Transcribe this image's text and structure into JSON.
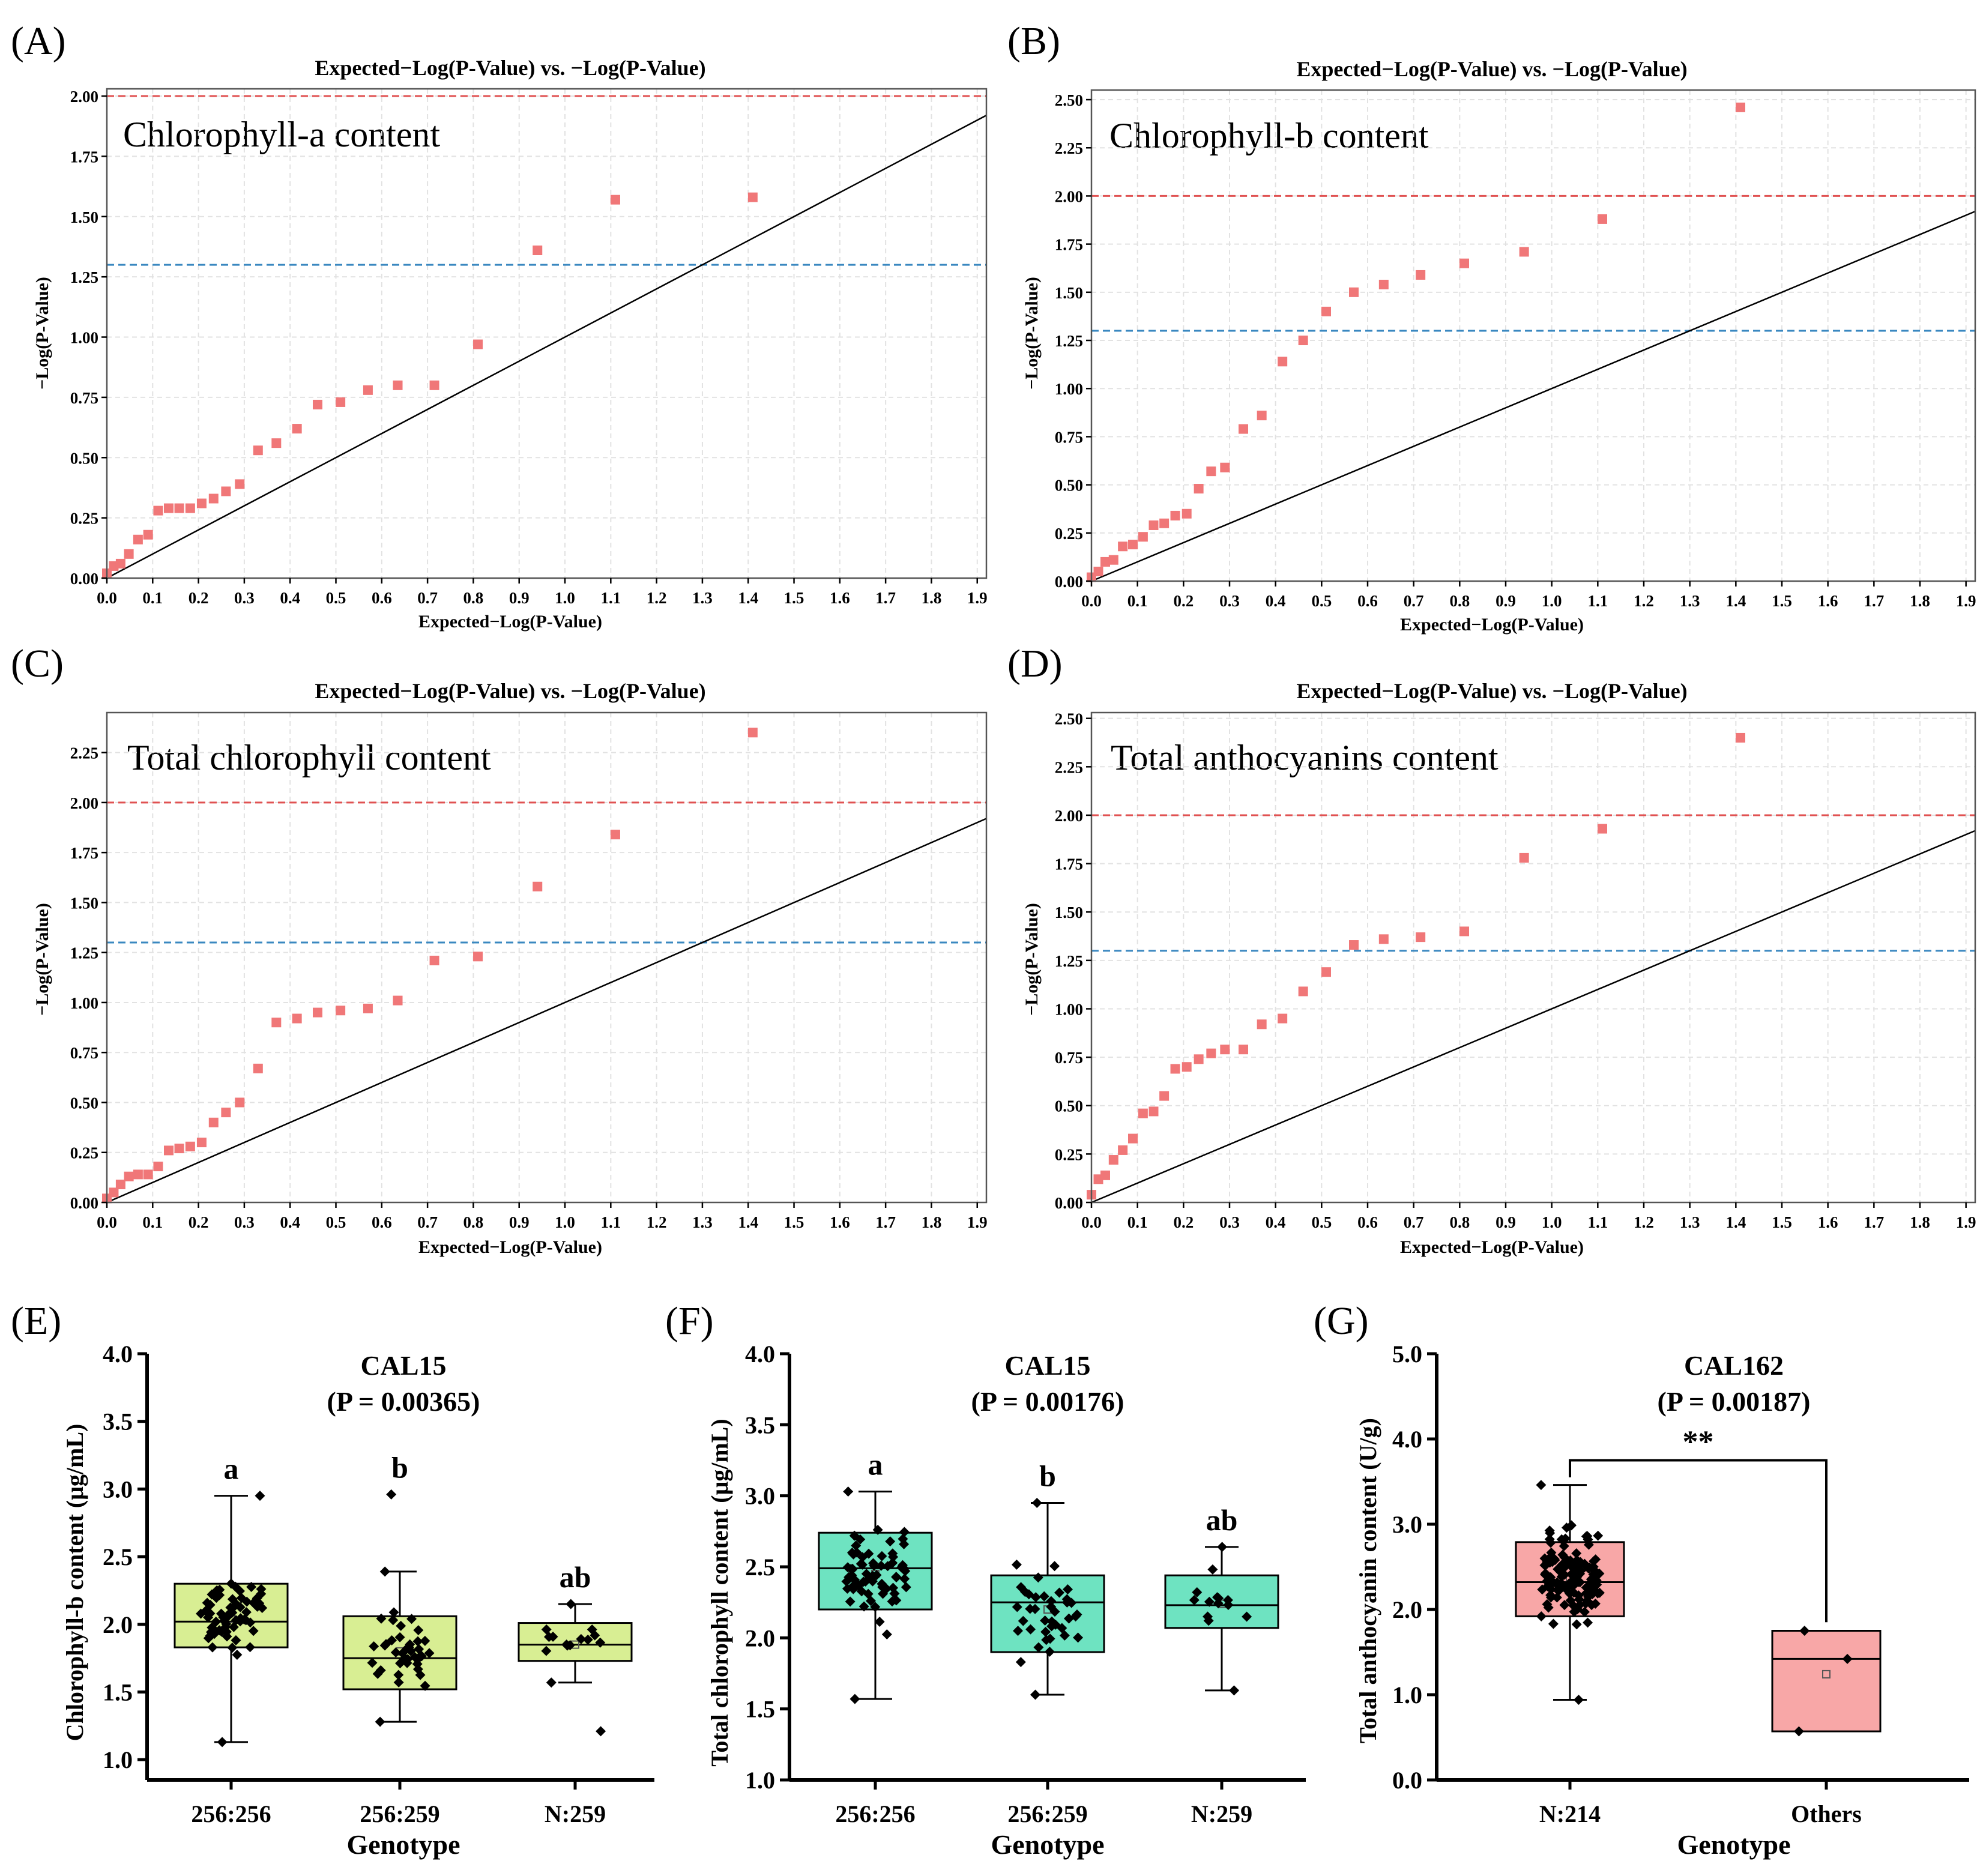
{
  "figure": {
    "qq_panels": [
      {
        "panel_label": "(A)",
        "title": "Expected−Log(P-Value) vs. −Log(P-Value)",
        "trait_label": "Chlorophyll-a content",
        "xlabel": "Expected−Log(P-Value)",
        "ylabel": "−Log(P-Value)"
      },
      {
        "panel_label": "(B)",
        "title": "Expected−Log(P-Value) vs. −Log(P-Value)",
        "trait_label": "Chlorophyll-b content",
        "xlabel": "Expected−Log(P-Value)",
        "ylabel": "−Log(P-Value)"
      },
      {
        "panel_label": "(C)",
        "title": "Expected−Log(P-Value) vs. −Log(P-Value)",
        "trait_label": "Total chlorophyll content",
        "xlabel": "Expected−Log(P-Value)",
        "ylabel": "−Log(P-Value)"
      },
      {
        "panel_label": "(D)",
        "title": "Expected−Log(P-Value) vs. −Log(P-Value)",
        "trait_label": "Total anthocyanins content",
        "xlabel": "Expected−Log(P-Value)",
        "ylabel": "−Log(P-Value)"
      }
    ],
    "box_panels": [
      {
        "panel_label": "(E)",
        "marker": "CAL15",
        "p_label": "(P = 0.00365)",
        "ylabel": "Chlorophyll-b content (μg/mL)",
        "xlabel": "Genotype"
      },
      {
        "panel_label": "(F)",
        "marker": "CAL15",
        "p_label": "(P = 0.00176)",
        "ylabel": "Total chlorophyll content (μg/mL)",
        "xlabel": "Genotype"
      },
      {
        "panel_label": "(G)",
        "marker": "CAL162",
        "p_label": "(P = 0.00187)",
        "ylabel": "Total anthocyanin content (U/g)",
        "xlabel": "Genotype",
        "significance": "**"
      }
    ]
  },
  "colors": {
    "qq_point": "#f07778",
    "threshold_red": "#e05252",
    "threshold_blue": "#3a88c0",
    "grid": "#e2e2e2",
    "diag": "#000000",
    "box_E": "#d8ee93",
    "box_F": "#6ee3c1",
    "box_G": "#f8a7a7"
  },
  "chart_data": [
    {
      "type": "scatter",
      "name": "A",
      "title": "Expected−Log(P-Value) vs. −Log(P-Value)",
      "xlabel": "Expected−Log(P-Value)",
      "ylabel": "−Log(P-Value)",
      "xlim": [
        0,
        1.92
      ],
      "ylim": [
        0,
        2.03
      ],
      "xticks": [
        "0.0",
        "0.1",
        "0.2",
        "0.3",
        "0.4",
        "0.5",
        "0.6",
        "0.7",
        "0.8",
        "0.9",
        "1.0",
        "1.1",
        "1.2",
        "1.3",
        "1.4",
        "1.5",
        "1.6",
        "1.7",
        "1.8",
        "1.9"
      ],
      "yticks": [
        "0.00",
        "0.25",
        "0.50",
        "0.75",
        "1.00",
        "1.25",
        "1.50",
        "1.75",
        "2.00"
      ],
      "thresholds": {
        "red": 2.0,
        "blue": 1.3
      },
      "x": [
        0.0,
        0.015,
        0.03,
        0.048,
        0.068,
        0.09,
        0.112,
        0.135,
        0.158,
        0.182,
        0.207,
        0.233,
        0.26,
        0.29,
        0.33,
        0.37,
        0.415,
        0.46,
        0.51,
        0.57,
        0.635,
        0.715,
        0.81,
        0.94,
        1.11,
        1.41
      ],
      "y": [
        0.02,
        0.05,
        0.06,
        0.1,
        0.16,
        0.18,
        0.28,
        0.29,
        0.29,
        0.29,
        0.31,
        0.33,
        0.36,
        0.39,
        0.53,
        0.56,
        0.62,
        0.72,
        0.73,
        0.78,
        0.8,
        0.8,
        0.97,
        1.36,
        1.57,
        1.58
      ]
    },
    {
      "type": "scatter",
      "name": "B",
      "title": "Expected−Log(P-Value) vs. −Log(P-Value)",
      "xlabel": "Expected−Log(P-Value)",
      "ylabel": "−Log(P-Value)",
      "xlim": [
        0,
        1.92
      ],
      "ylim": [
        0,
        2.55
      ],
      "xticks": [
        "0.0",
        "0.1",
        "0.2",
        "0.3",
        "0.4",
        "0.5",
        "0.6",
        "0.7",
        "0.8",
        "0.9",
        "1.0",
        "1.1",
        "1.2",
        "1.3",
        "1.4",
        "1.5",
        "1.6",
        "1.7",
        "1.8",
        "1.9"
      ],
      "yticks": [
        "0.00",
        "0.25",
        "0.50",
        "0.75",
        "1.00",
        "1.25",
        "1.50",
        "1.75",
        "2.00",
        "2.25",
        "2.50"
      ],
      "thresholds": {
        "red": 2.0,
        "blue": 1.3
      },
      "x": [
        0.0,
        0.015,
        0.03,
        0.048,
        0.068,
        0.09,
        0.112,
        0.135,
        0.158,
        0.182,
        0.207,
        0.233,
        0.26,
        0.29,
        0.33,
        0.37,
        0.415,
        0.46,
        0.51,
        0.57,
        0.635,
        0.715,
        0.81,
        0.94,
        1.11,
        1.41
      ],
      "y": [
        0.02,
        0.05,
        0.1,
        0.11,
        0.18,
        0.19,
        0.23,
        0.29,
        0.3,
        0.34,
        0.35,
        0.48,
        0.57,
        0.59,
        0.79,
        0.86,
        1.14,
        1.25,
        1.4,
        1.5,
        1.54,
        1.59,
        1.65,
        1.71,
        1.88,
        2.46
      ]
    },
    {
      "type": "scatter",
      "name": "C",
      "title": "Expected−Log(P-Value) vs. −Log(P-Value)",
      "xlabel": "Expected−Log(P-Value)",
      "ylabel": "−Log(P-Value)",
      "xlim": [
        0,
        1.92
      ],
      "ylim": [
        0,
        2.45
      ],
      "xticks": [
        "0.0",
        "0.1",
        "0.2",
        "0.3",
        "0.4",
        "0.5",
        "0.6",
        "0.7",
        "0.8",
        "0.9",
        "1.0",
        "1.1",
        "1.2",
        "1.3",
        "1.4",
        "1.5",
        "1.6",
        "1.7",
        "1.8",
        "1.9"
      ],
      "yticks": [
        "0.00",
        "0.25",
        "0.50",
        "0.75",
        "1.00",
        "1.25",
        "1.50",
        "1.75",
        "2.00",
        "2.25"
      ],
      "thresholds": {
        "red": 2.0,
        "blue": 1.3
      },
      "x": [
        0.0,
        0.015,
        0.03,
        0.048,
        0.068,
        0.09,
        0.112,
        0.135,
        0.158,
        0.182,
        0.207,
        0.233,
        0.26,
        0.29,
        0.33,
        0.37,
        0.415,
        0.46,
        0.51,
        0.57,
        0.635,
        0.715,
        0.81,
        0.94,
        1.11,
        1.41
      ],
      "y": [
        0.02,
        0.05,
        0.09,
        0.13,
        0.14,
        0.14,
        0.18,
        0.26,
        0.27,
        0.28,
        0.3,
        0.4,
        0.45,
        0.5,
        0.67,
        0.9,
        0.92,
        0.95,
        0.96,
        0.97,
        1.01,
        1.21,
        1.23,
        1.58,
        1.84,
        2.35
      ]
    },
    {
      "type": "scatter",
      "name": "D",
      "title": "Expected−Log(P-Value) vs. −Log(P-Value)",
      "xlabel": "Expected−Log(P-Value)",
      "ylabel": "−Log(P-Value)",
      "xlim": [
        0,
        1.92
      ],
      "ylim": [
        0,
        2.53
      ],
      "xticks": [
        "0.0",
        "0.1",
        "0.2",
        "0.3",
        "0.4",
        "0.5",
        "0.6",
        "0.7",
        "0.8",
        "0.9",
        "1.0",
        "1.1",
        "1.2",
        "1.3",
        "1.4",
        "1.5",
        "1.6",
        "1.7",
        "1.8",
        "1.9"
      ],
      "yticks": [
        "0.00",
        "0.25",
        "0.50",
        "0.75",
        "1.00",
        "1.25",
        "1.50",
        "1.75",
        "2.00",
        "2.25",
        "2.50"
      ],
      "thresholds": {
        "red": 2.0,
        "blue": 1.3
      },
      "x": [
        0.0,
        0.015,
        0.03,
        0.048,
        0.068,
        0.09,
        0.112,
        0.135,
        0.158,
        0.182,
        0.207,
        0.233,
        0.26,
        0.29,
        0.33,
        0.37,
        0.415,
        0.46,
        0.51,
        0.57,
        0.635,
        0.715,
        0.81,
        0.94,
        1.11,
        1.41
      ],
      "y": [
        0.04,
        0.12,
        0.14,
        0.22,
        0.27,
        0.33,
        0.46,
        0.47,
        0.55,
        0.69,
        0.7,
        0.74,
        0.77,
        0.79,
        0.79,
        0.92,
        0.95,
        1.09,
        1.19,
        1.33,
        1.36,
        1.37,
        1.4,
        1.78,
        1.93,
        2.4
      ]
    },
    {
      "type": "box",
      "name": "E",
      "title": "CAL15",
      "subtitle": "(P = 0.00365)",
      "xlabel": "Genotype",
      "ylabel": "Chlorophyll-b content (μg/mL)",
      "ylim": [
        0.85,
        4.0
      ],
      "yticks": [
        "1.0",
        "1.5",
        "2.0",
        "2.5",
        "3.0",
        "3.5",
        "4.0"
      ],
      "categories": [
        "256:256",
        "256:259",
        "N:259"
      ],
      "boxes": [
        {
          "min": 1.13,
          "q1": 1.83,
          "median": 2.02,
          "q3": 2.3,
          "max": 2.95,
          "mean": 2.04,
          "letter": "a",
          "n": 70
        },
        {
          "min": 1.28,
          "q1": 1.52,
          "median": 1.75,
          "q3": 2.06,
          "max": 2.39,
          "mean": 1.8,
          "letter": "b",
          "n": 40,
          "outliers": [
            2.96
          ]
        },
        {
          "min": 1.57,
          "q1": 1.73,
          "median": 1.85,
          "q3": 2.01,
          "max": 2.15,
          "mean": 1.85,
          "letter": "ab",
          "n": 14,
          "outliers": [
            1.21
          ]
        }
      ]
    },
    {
      "type": "box",
      "name": "F",
      "title": "CAL15",
      "subtitle": "(P = 0.00176)",
      "xlabel": "Genotype",
      "ylabel": "Total chlorophyll content (μg/mL)",
      "ylim": [
        1.0,
        4.0
      ],
      "yticks": [
        "1.0",
        "1.5",
        "2.0",
        "2.5",
        "3.0",
        "3.5",
        "4.0"
      ],
      "categories": [
        "256:256",
        "256:259",
        "N:259"
      ],
      "boxes": [
        {
          "min": 1.57,
          "q1": 2.2,
          "median": 2.49,
          "q3": 2.74,
          "max": 3.03,
          "mean": 2.45,
          "letter": "a",
          "n": 70
        },
        {
          "min": 1.6,
          "q1": 1.9,
          "median": 2.25,
          "q3": 2.44,
          "max": 2.95,
          "mean": 2.2,
          "letter": "b",
          "n": 40
        },
        {
          "min": 1.63,
          "q1": 2.07,
          "median": 2.23,
          "q3": 2.44,
          "max": 2.64,
          "mean": 2.24,
          "letter": "ab",
          "n": 14
        }
      ]
    },
    {
      "type": "box",
      "name": "G",
      "title": "CAL162",
      "subtitle": "(P = 0.00187)",
      "xlabel": "Genotype",
      "ylabel": "Total anthocyanin content (U/g)",
      "ylim": [
        0.0,
        5.0
      ],
      "yticks": [
        "0.0",
        "1.0",
        "2.0",
        "3.0",
        "4.0",
        "5.0"
      ],
      "categories": [
        "N:214",
        "Others"
      ],
      "boxes": [
        {
          "min": 0.94,
          "q1": 1.92,
          "median": 2.32,
          "q3": 2.79,
          "max": 3.46,
          "mean": 2.35,
          "n": 140
        },
        {
          "min": 0.57,
          "q1": 0.57,
          "median": 1.42,
          "q3": 1.75,
          "max": 1.75,
          "mean": 1.24,
          "n": 3,
          "points": [
            1.75,
            1.42,
            0.57
          ]
        }
      ],
      "significance": "**"
    }
  ]
}
